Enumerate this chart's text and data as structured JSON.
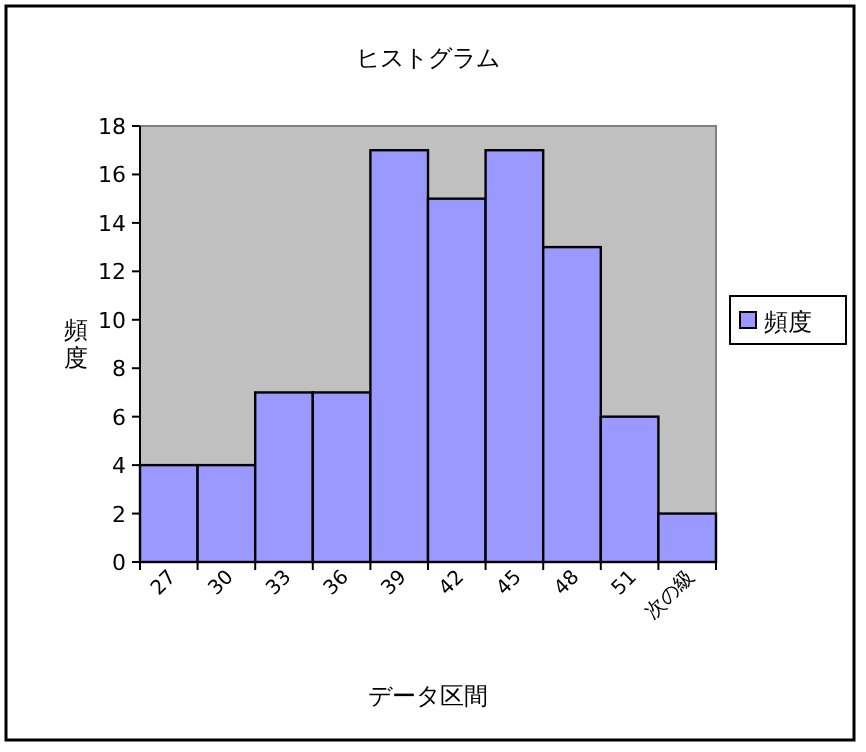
{
  "chart_data": {
    "type": "bar",
    "title": "ヒストグラム",
    "xlabel": "データ区間",
    "ylabel": "頻度",
    "categories": [
      "27",
      "30",
      "33",
      "36",
      "39",
      "42",
      "45",
      "48",
      "51",
      "次の級"
    ],
    "series": [
      {
        "name": "頻度",
        "color": "#9999ff",
        "values": [
          4,
          4,
          7,
          7,
          17,
          15,
          17,
          13,
          6,
          2
        ]
      }
    ],
    "ylim": [
      0,
      18
    ],
    "yticks": [
      0,
      2,
      4,
      6,
      8,
      10,
      12,
      14,
      16,
      18
    ],
    "grid": false,
    "legend": "right"
  }
}
